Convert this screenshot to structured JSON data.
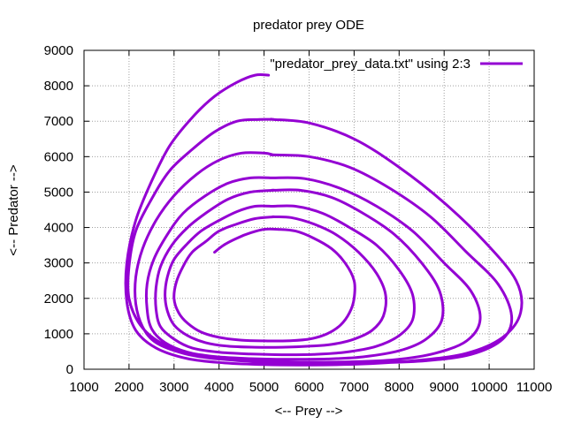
{
  "chart_data": {
    "type": "line",
    "title": "predator prey ODE",
    "xlabel": "<-- Prey -->",
    "ylabel": "<-- Predator -->",
    "xlim": [
      1000,
      11000
    ],
    "ylim": [
      0,
      9000
    ],
    "x_ticks": [
      "1000",
      "2000",
      "3000",
      "4000",
      "5000",
      "6000",
      "7000",
      "8000",
      "9000",
      "10000",
      "11000"
    ],
    "y_ticks": [
      "0",
      "1000",
      "2000",
      "3000",
      "4000",
      "5000",
      "6000",
      "7000",
      "8000",
      "9000"
    ],
    "grid": true,
    "legend_position": "top-right",
    "colors": {
      "series": "#9400d3",
      "grid": "#a0a0a0",
      "axis": "#000000"
    },
    "series": [
      {
        "name": "\"predator_prey_data.txt\" using 2:3",
        "loops": [
          {
            "x": [
              3900,
              4100,
              4400,
              4700,
              5000,
              5300,
              5700,
              6100,
              6500,
              6800,
              7000,
              7000,
              6900,
              6700,
              6400,
              6000,
              5500,
              5000,
              4500,
              4000,
              3600,
              3300,
              3100,
              3000,
              3050,
              3200,
              3400,
              3700,
              4000,
              4400,
              4800,
              5200
            ],
            "y": [
              3300,
              3500,
              3700,
              3850,
              3950,
              3950,
              3900,
              3700,
              3400,
              3000,
              2500,
              2000,
              1600,
              1250,
              1000,
              850,
              800,
              800,
              820,
              900,
              1050,
              1300,
              1600,
              2000,
              2450,
              2900,
              3300,
              3600,
              3900,
              4100,
              4250,
              4300
            ]
          },
          {
            "x": [
              5200,
              5600,
              6100,
              6600,
              7100,
              7500,
              7700,
              7650,
              7400,
              7000,
              6500,
              6000,
              5400,
              4800,
              4200,
              3700,
              3300,
              3000,
              2850,
              2800,
              2850,
              3000,
              3300,
              3600,
              4000,
              4400,
              4800,
              5200
            ],
            "y": [
              4300,
              4280,
              4100,
              3800,
              3300,
              2700,
              2100,
              1500,
              1100,
              850,
              700,
              650,
              620,
              620,
              650,
              750,
              950,
              1250,
              1650,
              2100,
              2600,
              3100,
              3550,
              3900,
              4200,
              4450,
              4600,
              4600
            ]
          },
          {
            "x": [
              5200,
              5700,
              6300,
              6900,
              7500,
              8000,
              8300,
              8300,
              8000,
              7500,
              6800,
              6100,
              5400,
              4700,
              4000,
              3400,
              3000,
              2700,
              2600,
              2600,
              2700,
              2950,
              3300,
              3700,
              4200,
              4700,
              5200
            ],
            "y": [
              4600,
              4600,
              4400,
              4000,
              3500,
              2800,
              2100,
              1400,
              950,
              650,
              480,
              420,
              410,
              430,
              480,
              600,
              850,
              1200,
              1700,
              2300,
              2900,
              3500,
              4000,
              4400,
              4800,
              5000,
              5050
            ]
          },
          {
            "x": [
              5200,
              5800,
              6500,
              7200,
              7900,
              8500,
              8900,
              8950,
              8600,
              8000,
              7200,
              6400,
              5500,
              4700,
              3900,
              3300,
              2800,
              2500,
              2400,
              2400,
              2550,
              2850,
              3200,
              3700,
              4200,
              4700,
              5200
            ],
            "y": [
              5050,
              5050,
              4850,
              4400,
              3800,
              3000,
              2200,
              1400,
              850,
              520,
              350,
              290,
              280,
              300,
              360,
              480,
              750,
              1150,
              1700,
              2400,
              3100,
              3800,
              4400,
              4900,
              5250,
              5400,
              5400
            ]
          },
          {
            "x": [
              5200,
              5900,
              6700,
              7500,
              8300,
              9000,
              9600,
              9800,
              9500,
              8800,
              7900,
              6900,
              5800,
              4800,
              3900,
              3200,
              2600,
              2300,
              2150,
              2150,
              2300,
              2600,
              3000,
              3500,
              4000,
              4500,
              5000,
              5200
            ],
            "y": [
              5400,
              5380,
              5100,
              4600,
              3900,
              3000,
              2200,
              1400,
              800,
              450,
              270,
              210,
              200,
              230,
              300,
              450,
              750,
              1200,
              1850,
              2600,
              3400,
              4200,
              4900,
              5500,
              5900,
              6100,
              6100,
              6050
            ]
          },
          {
            "x": [
              5200,
              6000,
              6900,
              7800,
              8700,
              9500,
              10200,
              10500,
              10300,
              9600,
              8600,
              7500,
              6300,
              5200,
              4200,
              3400,
              2700,
              2250,
              2000,
              2000,
              2150,
              2500,
              2900,
              3400,
              3900,
              4400,
              4900,
              5200
            ],
            "y": [
              6050,
              6000,
              5700,
              5100,
              4300,
              3300,
              2400,
              1500,
              850,
              420,
              240,
              180,
              170,
              190,
              270,
              420,
              750,
              1250,
              2000,
              2900,
              3900,
              4800,
              5600,
              6200,
              6700,
              7000,
              7050,
              7050
            ]
          },
          {
            "x": [
              5200,
              6000,
              7000,
              8000,
              9000,
              9900,
              10600,
              10700,
              10300,
              9500,
              8400,
              7200,
              6000,
              5000,
              4100,
              3300,
              2600,
              2150,
              1950,
              1950,
              2150,
              2500,
              2900,
              3400,
              3900,
              4400,
              4800,
              5100
            ],
            "y": [
              7050,
              6950,
              6500,
              5700,
              4700,
              3600,
              2500,
              1600,
              900,
              450,
              250,
              150,
              120,
              130,
              180,
              300,
              600,
              1100,
              1900,
              3000,
              4200,
              5300,
              6300,
              7100,
              7700,
              8100,
              8300,
              8300
            ]
          }
        ]
      }
    ]
  }
}
